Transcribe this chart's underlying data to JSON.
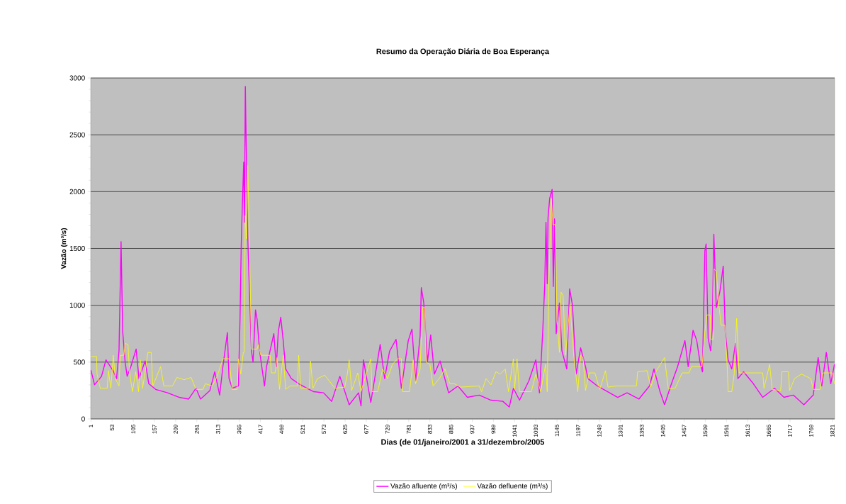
{
  "chart_data": {
    "type": "line",
    "title": "Resumo da Operação Diária de Boa Esperança",
    "xlabel": "Dias (de 01/janeiro/2001 a 31/dezembro/2005",
    "ylabel": "Vazão (m³/s)",
    "xlim": [
      0.5,
      1826.5
    ],
    "xticks": [
      1,
      53,
      105,
      157,
      209,
      261,
      313,
      365,
      417,
      469,
      521,
      573,
      625,
      677,
      729,
      781,
      833,
      885,
      937,
      989,
      1041,
      1093,
      1145,
      1197,
      1249,
      1301,
      1353,
      1405,
      1457,
      1509,
      1561,
      1613,
      1665,
      1717,
      1769,
      1821
    ],
    "ylim": [
      0,
      3000
    ],
    "yticks": [
      0,
      500,
      1000,
      1500,
      2000,
      2500,
      3000
    ],
    "grid": "y",
    "legend": "bottom",
    "marker": "none",
    "line_style": "solid",
    "series": [
      {
        "name": "Vazão afluente (m³/s)",
        "color": "#ff00ff",
        "x": [
          1,
          10,
          27,
          38,
          56,
          64,
          70,
          75,
          79,
          85,
          90,
          99,
          112,
          119,
          134,
          143,
          160,
          189,
          218,
          241,
          259,
          270,
          293,
          305,
          317,
          325,
          336,
          340,
          348,
          363,
          367,
          370,
          372,
          376,
          378,
          380,
          383,
          386,
          389,
          395,
          399,
          405,
          409,
          415,
          427,
          432,
          450,
          456,
          461,
          467,
          473,
          479,
          493,
          511,
          531,
          548,
          572,
          592,
          612,
          635,
          658,
          664,
          670,
          688,
          711,
          722,
          734,
          750,
          763,
          780,
          789,
          798,
          809,
          812,
          818,
          827,
          835,
          844,
          858,
          879,
          902,
          925,
          954,
          983,
          1012,
          1028,
          1038,
          1053,
          1076,
          1093,
          1102,
          1110,
          1115,
          1118,
          1121,
          1123,
          1127,
          1133,
          1136,
          1139,
          1143,
          1151,
          1157,
          1169,
          1176,
          1183,
          1192,
          1203,
          1215,
          1221,
          1244,
          1264,
          1294,
          1317,
          1346,
          1372,
          1383,
          1397,
          1409,
          1424,
          1441,
          1459,
          1467,
          1479,
          1488,
          1496,
          1502,
          1508,
          1511,
          1516,
          1522,
          1526,
          1530,
          1536,
          1545,
          1553,
          1558,
          1565,
          1574,
          1583,
          1589,
          1603,
          1627,
          1650,
          1679,
          1702,
          1725,
          1751,
          1774,
          1786,
          1795,
          1806,
          1817,
          1826
        ],
        "values": [
          430,
          300,
          375,
          520,
          420,
          355,
          600,
          1560,
          770,
          500,
          375,
          460,
          615,
          355,
          510,
          310,
          260,
          230,
          190,
          175,
          270,
          175,
          250,
          415,
          210,
          460,
          760,
          355,
          270,
          290,
          875,
          1530,
          1790,
          2260,
          1730,
          2925,
          2230,
          1600,
          1250,
          600,
          500,
          960,
          875,
          600,
          290,
          460,
          750,
          460,
          770,
          895,
          690,
          440,
          355,
          310,
          270,
          240,
          230,
          155,
          375,
          125,
          230,
          115,
          520,
          145,
          655,
          355,
          595,
          700,
          270,
          690,
          790,
          335,
          730,
          1155,
          1020,
          500,
          740,
          395,
          510,
          230,
          290,
          190,
          210,
          165,
          155,
          105,
          270,
          165,
          335,
          520,
          230,
          770,
          1190,
          1730,
          1190,
          1770,
          1940,
          2020,
          1165,
          1760,
          750,
          1020,
          600,
          440,
          1145,
          1000,
          395,
          625,
          460,
          355,
          290,
          250,
          190,
          230,
          175,
          290,
          440,
          250,
          125,
          290,
          460,
          690,
          460,
          780,
          690,
          500,
          415,
          1480,
          1540,
          710,
          600,
          790,
          1625,
          980,
          1125,
          1345,
          770,
          520,
          440,
          665,
          355,
          415,
          310,
          190,
          270,
          190,
          210,
          125,
          210,
          540,
          290,
          585,
          310,
          480
        ]
      },
      {
        "name": "Vazão defluente (m³/s)",
        "color": "#ffff00",
        "x": [
          1,
          15,
          16,
          24,
          41,
          44,
          50,
          56,
          61,
          70,
          73,
          82,
          85,
          92,
          96,
          103,
          111,
          118,
          122,
          128,
          141,
          149,
          153,
          172,
          180,
          201,
          212,
          230,
          247,
          259,
          276,
          282,
          299,
          311,
          325,
          340,
          348,
          360,
          363,
          369,
          375,
          377,
          380,
          383,
          386,
          389,
          392,
          395,
          409,
          412,
          418,
          441,
          444,
          453,
          458,
          464,
          473,
          479,
          490,
          508,
          511,
          516,
          537,
          540,
          546,
          557,
          575,
          600,
          624,
          630,
          635,
          641,
          656,
          664,
          688,
          691,
          705,
          717,
          729,
          741,
          754,
          763,
          766,
          783,
          792,
          798,
          809,
          815,
          820,
          824,
          833,
          841,
          856,
          870,
          882,
          893,
          908,
          954,
          960,
          971,
          983,
          995,
          1006,
          1018,
          1026,
          1038,
          1041,
          1047,
          1053,
          1082,
          1093,
          1105,
          1117,
          1121,
          1125,
          1131,
          1135,
          1141,
          1145,
          1151,
          1155,
          1160,
          1166,
          1177,
          1186,
          1196,
          1203,
          1209,
          1215,
          1224,
          1238,
          1250,
          1264,
          1270,
          1291,
          1340,
          1343,
          1366,
          1375,
          1389,
          1409,
          1418,
          1435,
          1452,
          1469,
          1475,
          1501,
          1508,
          1513,
          1521,
          1523,
          1528,
          1530,
          1536,
          1542,
          1548,
          1557,
          1563,
          1565,
          1574,
          1580,
          1586,
          1592,
          1650,
          1653,
          1667,
          1673,
          1694,
          1697,
          1713,
          1716,
          1728,
          1745,
          1768,
          1774,
          1791,
          1797,
          1821,
          1826
        ],
        "values": [
          550,
          550,
          395,
          270,
          270,
          425,
          270,
          560,
          355,
          290,
          560,
          560,
          665,
          655,
          405,
          240,
          415,
          240,
          520,
          270,
          585,
          585,
          290,
          460,
          290,
          290,
          365,
          345,
          365,
          260,
          260,
          310,
          290,
          375,
          530,
          530,
          260,
          260,
          530,
          395,
          585,
          585,
          1790,
          1585,
          2230,
          1770,
          1190,
          615,
          615,
          655,
          560,
          560,
          405,
          405,
          540,
          260,
          560,
          260,
          290,
          290,
          560,
          270,
          270,
          510,
          270,
          355,
          385,
          270,
          280,
          385,
          520,
          250,
          405,
          240,
          530,
          240,
          240,
          440,
          355,
          480,
          530,
          530,
          240,
          240,
          520,
          310,
          440,
          980,
          980,
          500,
          480,
          290,
          355,
          440,
          310,
          310,
          280,
          290,
          240,
          355,
          300,
          415,
          395,
          440,
          240,
          530,
          260,
          530,
          240,
          240,
          395,
          240,
          480,
          240,
          1190,
          1940,
          1710,
          1710,
          875,
          585,
          1115,
          1085,
          560,
          1010,
          560,
          240,
          560,
          540,
          250,
          405,
          405,
          260,
          425,
          280,
          290,
          290,
          415,
          425,
          280,
          425,
          540,
          270,
          270,
          405,
          405,
          460,
          460,
          770,
          915,
          915,
          700,
          700,
          1320,
          1300,
          1010,
          825,
          825,
          440,
          240,
          240,
          395,
          885,
          405,
          405,
          270,
          480,
          260,
          250,
          415,
          415,
          250,
          355,
          395,
          355,
          260,
          260,
          405,
          405,
          310
        ]
      }
    ]
  }
}
